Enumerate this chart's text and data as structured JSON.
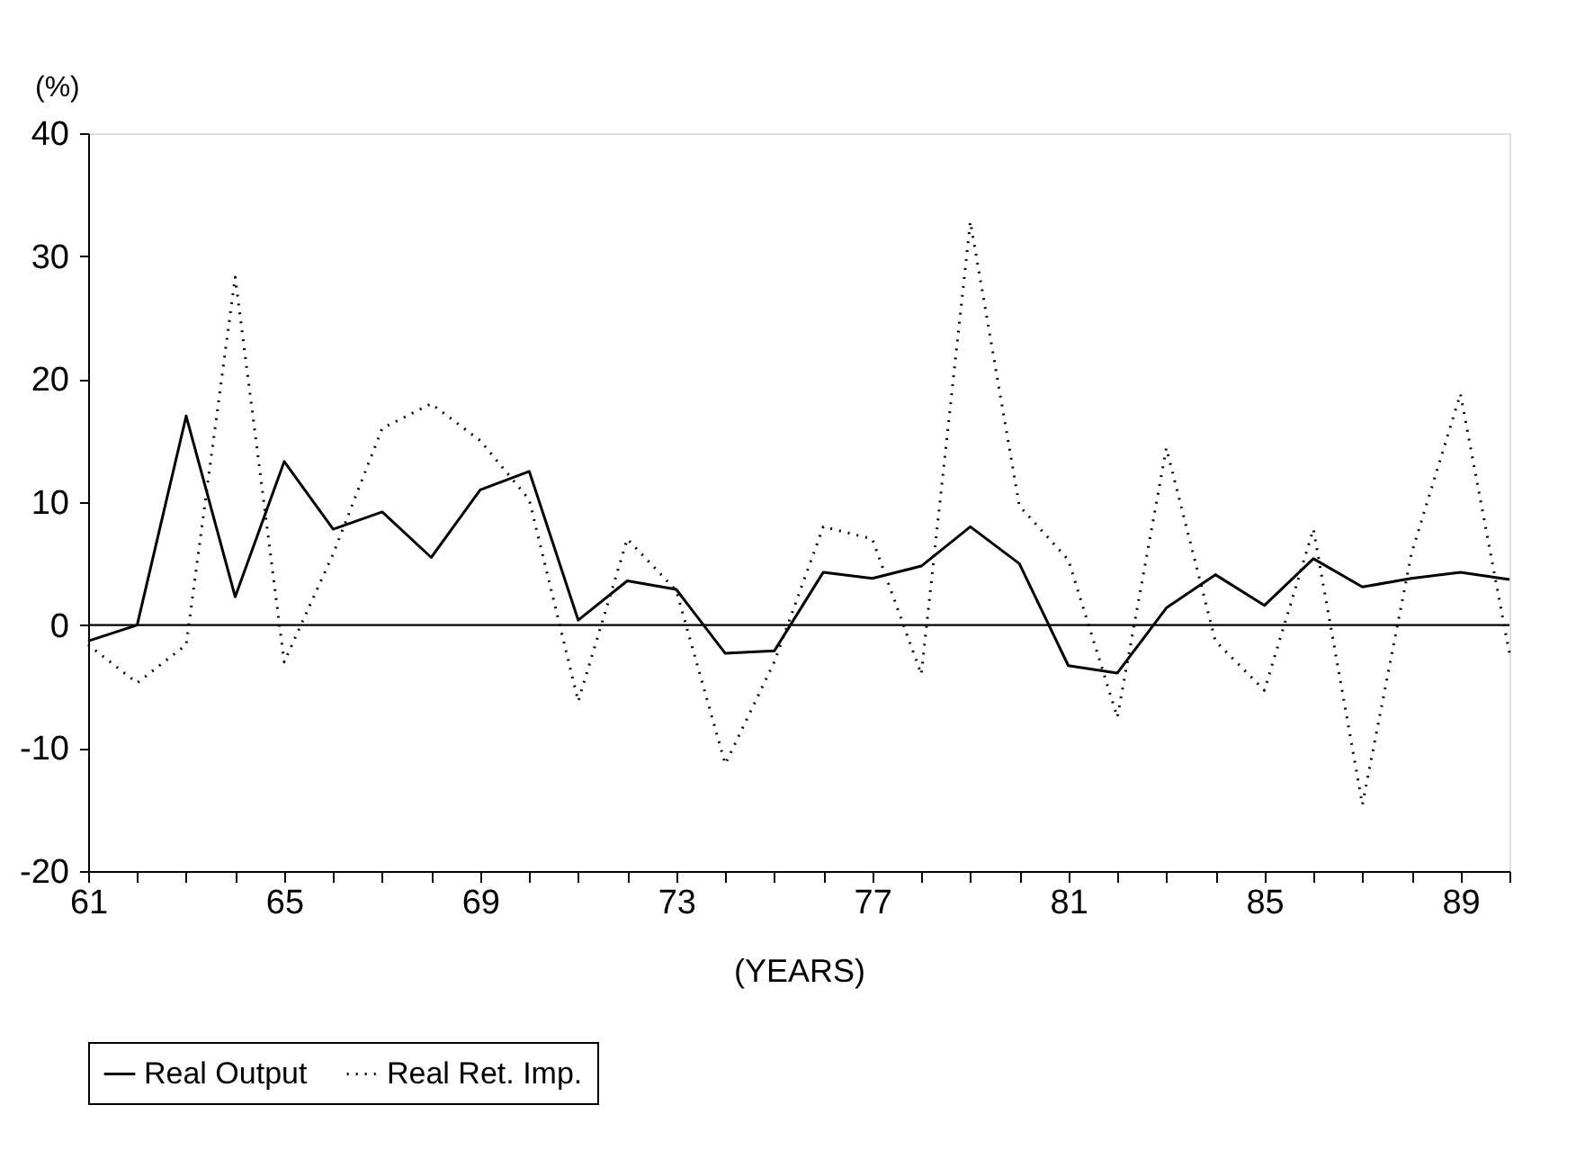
{
  "chart_data": {
    "type": "line",
    "ylabel": "(%)",
    "xlabel": "(YEARS)",
    "x": [
      61,
      62,
      63,
      64,
      65,
      66,
      67,
      68,
      69,
      70,
      71,
      72,
      73,
      74,
      75,
      76,
      77,
      78,
      79,
      80,
      81,
      82,
      83,
      84,
      85,
      86,
      87,
      88,
      89,
      90
    ],
    "series": [
      {
        "name": "Real Output",
        "color": "#000000",
        "line_style": "solid",
        "values": [
          -1.3,
          0,
          17,
          2.3,
          13.3,
          7.8,
          9.2,
          5.5,
          11,
          12.5,
          0.4,
          3.6,
          2.9,
          -2.3,
          -2.1,
          4.3,
          3.8,
          4.8,
          8,
          5,
          -3.3,
          -3.9,
          1.4,
          4.1,
          1.6,
          5.4,
          3.1,
          3.8,
          4.3,
          3.7
        ]
      },
      {
        "name": "Real Ret. Imp.",
        "color": "#000000",
        "line_style": "dotted",
        "values": [
          -1.6,
          -4.7,
          -1.6,
          28.3,
          -3,
          5.8,
          16,
          18,
          15,
          10.2,
          -6.2,
          7,
          2.8,
          -11.3,
          -3,
          8,
          7,
          -4,
          32.8,
          9.7,
          5.3,
          -7.5,
          14.4,
          -1.3,
          -5.3,
          7.8,
          -14.6,
          5.8,
          18.8,
          -2.3
        ]
      }
    ],
    "xlim": [
      61,
      90
    ],
    "xticks": [
      61,
      {
        "value": 62,
        "label": null
      },
      {
        "value": 63,
        "label": null
      },
      {
        "value": 64,
        "label": null
      },
      65,
      {
        "value": 66,
        "label": null
      },
      {
        "value": 67,
        "label": null
      },
      {
        "value": 68,
        "label": null
      },
      69,
      {
        "value": 70,
        "label": null
      },
      {
        "value": 71,
        "label": null
      },
      {
        "value": 72,
        "label": null
      },
      73,
      {
        "value": 74,
        "label": null
      },
      {
        "value": 75,
        "label": null
      },
      {
        "value": 76,
        "label": null
      },
      77,
      {
        "value": 78,
        "label": null
      },
      {
        "value": 79,
        "label": null
      },
      {
        "value": 80,
        "label": null
      },
      81,
      {
        "value": 82,
        "label": null
      },
      {
        "value": 83,
        "label": null
      },
      {
        "value": 84,
        "label": null
      },
      85,
      {
        "value": 86,
        "label": null
      },
      {
        "value": 87,
        "label": null
      },
      {
        "value": 88,
        "label": null
      },
      89,
      {
        "value": 90,
        "label": null
      }
    ],
    "ylim": [
      -20,
      40
    ],
    "yticks": [
      -20,
      -10,
      0,
      10,
      20,
      30,
      40
    ],
    "ref_lines": [
      {
        "axis": "y",
        "value": 0,
        "label": null,
        "color": "#000000"
      }
    ],
    "grid": false,
    "legend": "bottom",
    "marker": "none"
  }
}
